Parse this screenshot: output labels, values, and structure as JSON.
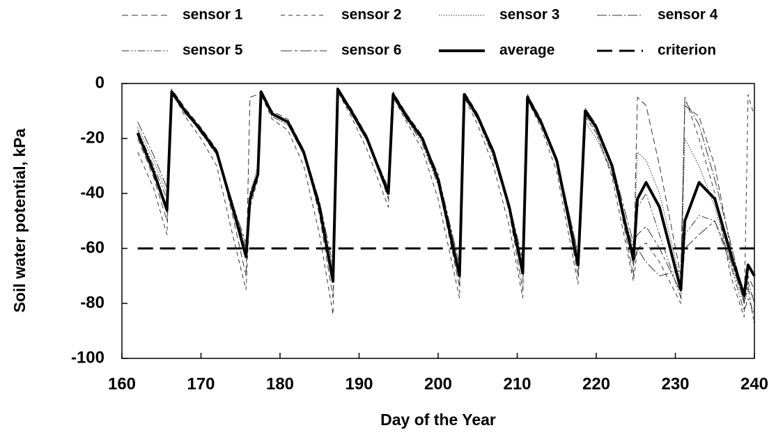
{
  "chart_data": {
    "type": "line",
    "xlabel": "Day of the Year",
    "ylabel": "Soil water potential, kPa",
    "xlim": [
      160,
      240
    ],
    "xticks": [
      160,
      170,
      180,
      190,
      200,
      210,
      220,
      230,
      240
    ],
    "ylim": [
      -100,
      0
    ],
    "yticks": [
      0,
      -20,
      -40,
      -60,
      -80,
      -100
    ],
    "x": [
      162,
      164,
      165.7,
      166.3,
      168,
      170,
      172,
      174,
      175.7,
      176.2,
      177.2,
      177.6,
      179,
      181,
      183,
      185,
      186.7,
      187.3,
      189,
      191,
      193.7,
      194.3,
      196,
      198,
      200,
      202.7,
      203.3,
      205,
      207,
      209,
      210.7,
      211.3,
      213,
      215,
      217.7,
      218.6,
      220,
      222,
      224.7,
      225.2,
      226.3,
      228,
      230.7,
      231.2,
      233,
      235,
      237,
      238.7,
      239.2,
      240
    ],
    "series": [
      {
        "name": "sensor 1",
        "color": "#333333",
        "dash": "9 5",
        "width": 1,
        "values": [
          -20,
          -34,
          -50,
          -2,
          -9,
          -16,
          -24,
          -48,
          -70,
          -5,
          -4,
          -3,
          -10,
          -13,
          -24,
          -48,
          -78,
          -2,
          -9,
          -19,
          -42,
          -3,
          -11,
          -19,
          -36,
          -74,
          -3,
          -11,
          -24,
          -47,
          -75,
          -4,
          -13,
          -27,
          -70,
          -9,
          -15,
          -29,
          -70,
          -5,
          -8,
          -30,
          -70,
          -8,
          -12,
          -30,
          -60,
          -80,
          -70,
          -75
        ]
      },
      {
        "name": "sensor 2",
        "color": "#333333",
        "dash": "6 5",
        "width": 1,
        "values": [
          -25,
          -38,
          -55,
          -3,
          -12,
          -20,
          -30,
          -55,
          -75,
          -45,
          -35,
          -4,
          -13,
          -17,
          -30,
          -55,
          -84,
          -3,
          -12,
          -24,
          -45,
          -5,
          -14,
          -24,
          -42,
          -78,
          -5,
          -15,
          -30,
          -52,
          -78,
          -6,
          -16,
          -32,
          -73,
          -12,
          -18,
          -34,
          -72,
          -60,
          -58,
          -65,
          -80,
          -5,
          -20,
          -40,
          -70,
          -85,
          -4,
          -12
        ]
      },
      {
        "name": "sensor 3",
        "color": "#333333",
        "dash": "1.5 2",
        "width": 1,
        "values": [
          -16,
          -28,
          -40,
          -4,
          -11,
          -17,
          -26,
          -43,
          -60,
          -40,
          -30,
          -3,
          -12,
          -15,
          -26,
          -44,
          -68,
          -3,
          -11,
          -21,
          -38,
          -5,
          -13,
          -21,
          -34,
          -66,
          -5,
          -13,
          -26,
          -44,
          -66,
          -6,
          -15,
          -29,
          -64,
          -14,
          -20,
          -32,
          -62,
          -25,
          -28,
          -40,
          -72,
          -20,
          -30,
          -45,
          -65,
          -80,
          -75,
          -78
        ]
      },
      {
        "name": "sensor 4",
        "color": "#333333",
        "dash": "14 3 2 3",
        "width": 1,
        "values": [
          -14,
          -26,
          -38,
          -3,
          -10,
          -18,
          -25,
          -44,
          -60,
          -42,
          -33,
          -3,
          -11,
          -14,
          -25,
          -44,
          -70,
          -2,
          -10,
          -20,
          -38,
          -4,
          -12,
          -20,
          -34,
          -68,
          -4,
          -12,
          -25,
          -44,
          -66,
          -5,
          -14,
          -27,
          -62,
          -9,
          -15,
          -30,
          -66,
          -60,
          -65,
          -70,
          -68,
          -6,
          -15,
          -35,
          -58,
          -78,
          -72,
          -80
        ]
      },
      {
        "name": "sensor 5",
        "color": "#333333",
        "dash": "10 3 2 3 2 3",
        "width": 1,
        "values": [
          -17,
          -30,
          -42,
          -4,
          -10,
          -18,
          -26,
          -46,
          -62,
          -44,
          -34,
          -4,
          -12,
          -15,
          -26,
          -46,
          -70,
          -3,
          -11,
          -21,
          -40,
          -5,
          -13,
          -22,
          -37,
          -70,
          -5,
          -13,
          -27,
          -46,
          -68,
          -6,
          -15,
          -29,
          -65,
          -11,
          -18,
          -33,
          -60,
          -45,
          -40,
          -55,
          -78,
          -55,
          -48,
          -50,
          -66,
          -83,
          -78,
          -84
        ]
      },
      {
        "name": "sensor 6",
        "color": "#333333",
        "dash": "16 4 4 4",
        "width": 1,
        "values": [
          -19,
          -33,
          -47,
          -3,
          -11,
          -17,
          -25,
          -44,
          -58,
          -40,
          -32,
          -3,
          -11,
          -14,
          -24,
          -43,
          -66,
          -2,
          -10,
          -19,
          -40,
          -4,
          -11,
          -20,
          -33,
          -66,
          -4,
          -12,
          -24,
          -44,
          -64,
          -5,
          -13,
          -27,
          -62,
          -10,
          -16,
          -29,
          -58,
          -55,
          -52,
          -60,
          -76,
          -60,
          -55,
          -50,
          -64,
          -79,
          -74,
          -88
        ]
      },
      {
        "name": "average",
        "color": "#000000",
        "dash": "none",
        "width": 4,
        "values": [
          -18,
          -32,
          -46,
          -3,
          -10,
          -17,
          -25,
          -45,
          -63,
          -42,
          -33,
          -3,
          -11,
          -14,
          -25,
          -45,
          -72,
          -2,
          -10,
          -20,
          -40,
          -4,
          -12,
          -20,
          -35,
          -70,
          -4,
          -12,
          -25,
          -45,
          -69,
          -5,
          -14,
          -28,
          -66,
          -10,
          -16,
          -30,
          -64,
          -42,
          -36,
          -45,
          -75,
          -50,
          -36,
          -42,
          -62,
          -77,
          -66,
          -70
        ]
      }
    ],
    "criterion": {
      "name": "criterion",
      "value": -60,
      "color": "#000000",
      "dash": "22 10",
      "width": 3
    }
  }
}
